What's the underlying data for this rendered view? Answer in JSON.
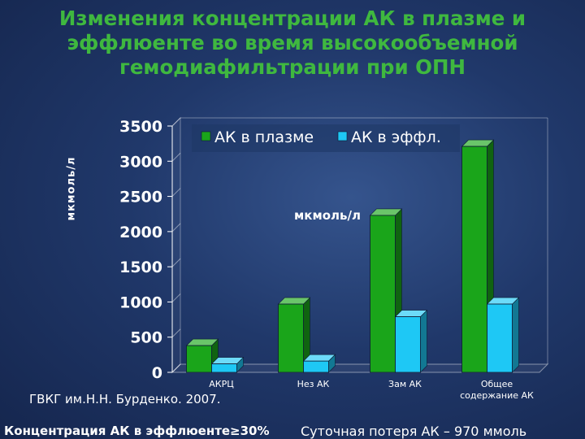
{
  "slide": {
    "title_lines": [
      "Изменения концентрации АК в плазме и",
      "эффлюенте во время высокообъемной",
      "гемодиафильтрации при ОПН"
    ],
    "credit": "ГВКГ им.Н.Н. Бурденко. 2007.",
    "footer_left": "Концентрация АК в эффлюенте≥30%",
    "footer_right": "Суточная потеря АК – 970 ммоль"
  },
  "colors": {
    "title": "#3fb83f",
    "plasma": "#1aa51a",
    "effluent": "#1ec8f5"
  },
  "chart_data": {
    "type": "bar",
    "categories": [
      "АКРЦ",
      "Нез АК",
      "Зам АК",
      "Общее содержание АК"
    ],
    "series": [
      {
        "name": "АК в плазме",
        "values": [
          380,
          970,
          2230,
          3210
        ]
      },
      {
        "name": "АК в эффл.",
        "values": [
          120,
          160,
          790,
          970
        ]
      }
    ],
    "ylabel": "мкмоль/л",
    "inner_label": "мкмоль/л",
    "yticks": [
      0,
      500,
      1000,
      1500,
      2000,
      2500,
      3000,
      3500
    ],
    "ylim": [
      0,
      3500
    ],
    "legend_position": "top-right",
    "grid": false
  }
}
